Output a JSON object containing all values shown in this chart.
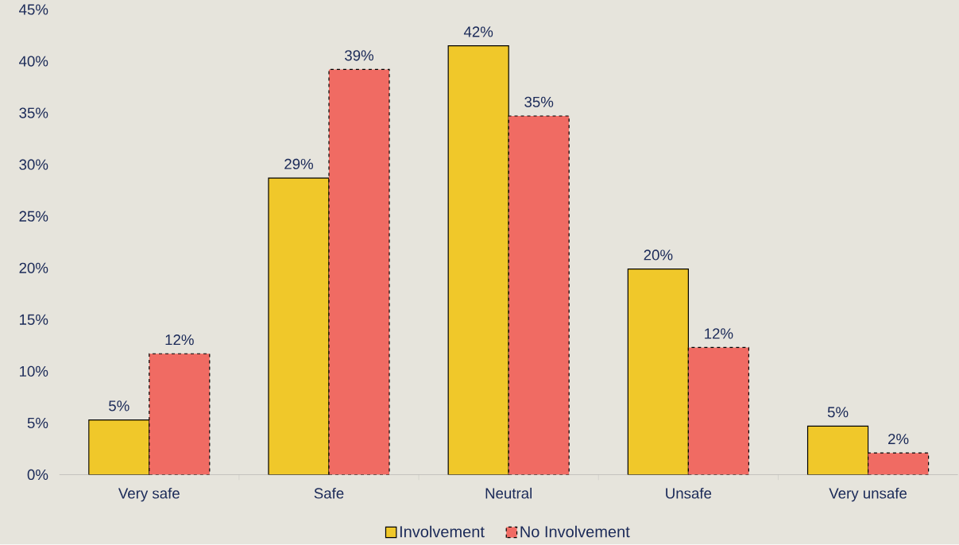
{
  "chart_data": {
    "type": "bar",
    "categories": [
      "Very safe",
      "Safe",
      "Neutral",
      "Unsafe",
      "Very unsafe"
    ],
    "series": [
      {
        "name": "Involvement",
        "color": "#f0c82a",
        "line_style": "solid",
        "values": [
          5.3,
          28.7,
          41.5,
          19.9,
          4.7
        ],
        "value_labels": [
          "5%",
          "29%",
          "42%",
          "20%",
          "5%"
        ]
      },
      {
        "name": "No Involvement",
        "color": "#f06b63",
        "line_style": "dashed",
        "values": [
          11.7,
          39.2,
          34.7,
          12.3,
          2.1
        ],
        "value_labels": [
          "12%",
          "39%",
          "35%",
          "12%",
          "2%"
        ]
      }
    ],
    "ylim": [
      0,
      45
    ],
    "yticks": [
      {
        "value": 0,
        "label": "0%"
      },
      {
        "value": 5,
        "label": "5%"
      },
      {
        "value": 10,
        "label": "10%"
      },
      {
        "value": 15,
        "label": "15%"
      },
      {
        "value": 20,
        "label": "20%"
      },
      {
        "value": 25,
        "label": "25%"
      },
      {
        "value": 30,
        "label": "30%"
      },
      {
        "value": 35,
        "label": "35%"
      },
      {
        "value": 40,
        "label": "40%"
      },
      {
        "value": 45,
        "label": "45%"
      }
    ],
    "grid": false,
    "legend": "bottom"
  }
}
